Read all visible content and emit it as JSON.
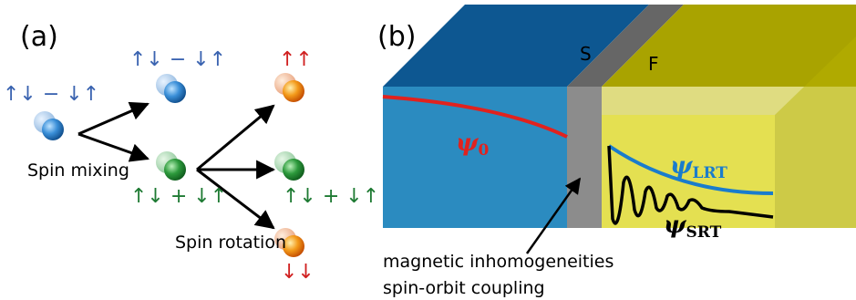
{
  "panel_a": {
    "label": "(a)",
    "initial": {
      "spin_label": "↑↓ − ↓↑"
    },
    "mixing": {
      "caption": "Spin mixing",
      "singlet_label": "↑↓ − ↓↑",
      "triplet_label": "↑↓ + ↓↑"
    },
    "rotation": {
      "caption": "Spin rotation",
      "up_label": "↑↑",
      "zero_label": "↑↓ + ↓↑",
      "down_label": "↓↓"
    }
  },
  "panel_b": {
    "label": "(b)",
    "s_layer": "S",
    "f_layer": "F",
    "psi0": {
      "symbol": "ψ",
      "subscript": "0"
    },
    "psi_lrt": {
      "symbol": "ψ",
      "subscript": "LRT"
    },
    "psi_srt": {
      "symbol": "ψ",
      "subscript": "SRT"
    },
    "interface_note": [
      "magnetic inhomogeneities",
      "spin-orbit coupling"
    ]
  }
}
